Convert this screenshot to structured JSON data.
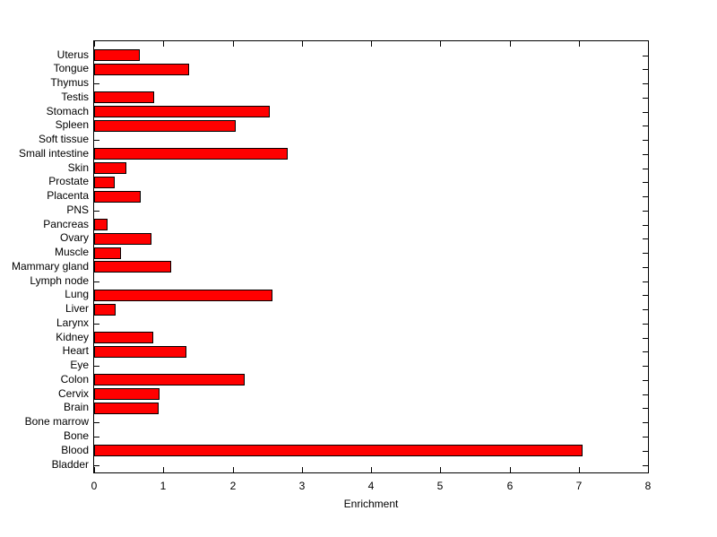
{
  "figure": {
    "background_color": "#FFFFFF",
    "axis_color": "#000000",
    "text_color": "#000000",
    "bar_fill_color": "#FF0000",
    "bar_edge_color": "#000000"
  },
  "chart_data": {
    "type": "bar",
    "orientation": "horizontal",
    "title": "",
    "xlabel": "Enrichment",
    "ylabel": "",
    "xlim": [
      0,
      8
    ],
    "xticks": [
      0,
      1,
      2,
      3,
      4,
      5,
      6,
      7,
      8
    ],
    "grid": false,
    "legend_position": "none",
    "categories": [
      "Uterus",
      "Tongue",
      "Thymus",
      "Testis",
      "Stomach",
      "Spleen",
      "Soft tissue",
      "Small intestine",
      "Skin",
      "Prostate",
      "Placenta",
      "PNS",
      "Pancreas",
      "Ovary",
      "Muscle",
      "Mammary gland",
      "Lymph node",
      "Lung",
      "Liver",
      "Larynx",
      "Kidney",
      "Heart",
      "Eye",
      "Colon",
      "Cervix",
      "Brain",
      "Bone marrow",
      "Bone",
      "Blood",
      "Bladder"
    ],
    "values": [
      0.66,
      1.37,
      0,
      0.87,
      2.54,
      2.04,
      0,
      2.79,
      0.46,
      0.3,
      0.67,
      0,
      0.19,
      0.83,
      0.39,
      1.11,
      0,
      2.57,
      0.31,
      0,
      0.85,
      1.33,
      0,
      2.17,
      0.95,
      0.93,
      0,
      0,
      7.06,
      0
    ]
  }
}
